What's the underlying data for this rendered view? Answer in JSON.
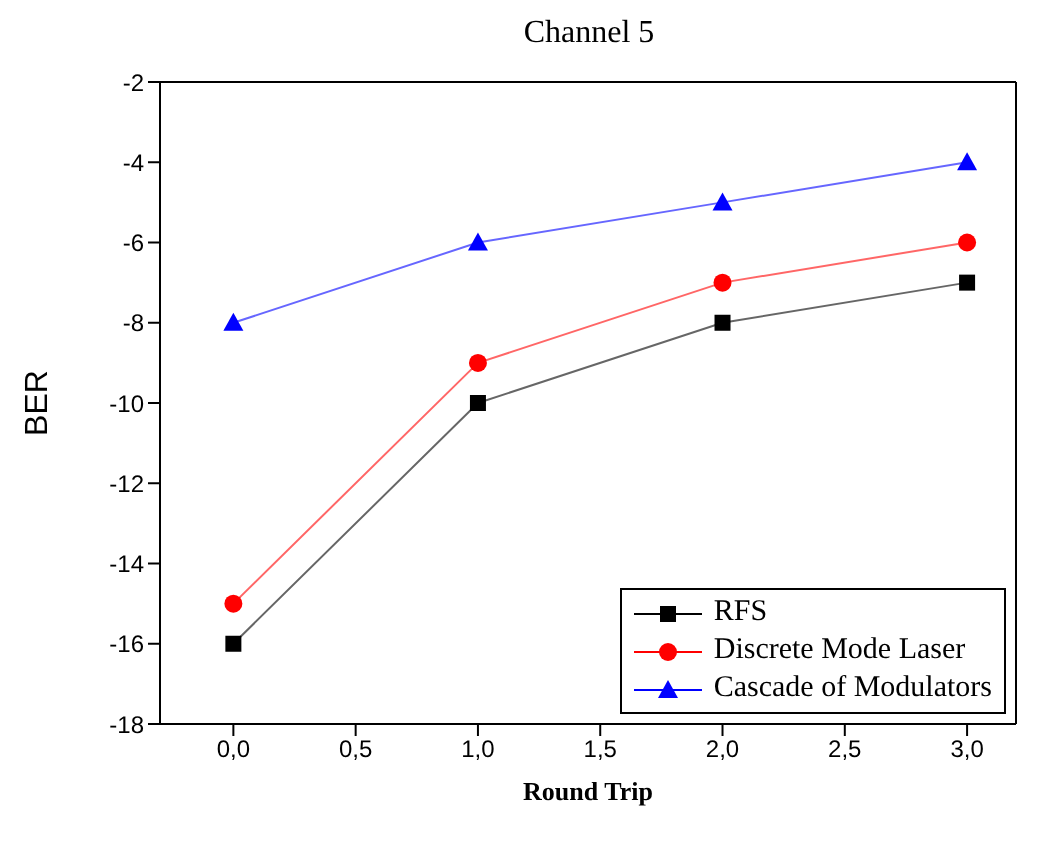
{
  "chart_data": {
    "type": "line",
    "title": "Channel 5",
    "xlabel": "Round Trip",
    "ylabel": "BER",
    "x": [
      0,
      1,
      2,
      3
    ],
    "series": [
      {
        "name": "RFS",
        "color": "#000000",
        "marker": "square",
        "values": [
          -16,
          -10,
          -8,
          -7
        ]
      },
      {
        "name": "Discrete Mode Laser",
        "color": "#ff0000",
        "marker": "circle",
        "values": [
          -15,
          -9,
          -7,
          -6
        ]
      },
      {
        "name": "Cascade of Modulators",
        "color": "#0000ff",
        "marker": "triangle",
        "values": [
          -8,
          -6,
          -5,
          -4
        ]
      }
    ],
    "xlim": [
      -0.3,
      3.2
    ],
    "xticks": [
      {
        "value": 0,
        "label": "0,0"
      },
      {
        "value": 0.5,
        "label": "0,5"
      },
      {
        "value": 1,
        "label": "1,0"
      },
      {
        "value": 1.5,
        "label": "1,5"
      },
      {
        "value": 2,
        "label": "2,0"
      },
      {
        "value": 2.5,
        "label": "2,5"
      },
      {
        "value": 3,
        "label": "3,0"
      }
    ],
    "ylim": [
      -18,
      -2
    ],
    "yticks": [
      -18,
      -16,
      -14,
      -12,
      -10,
      -8,
      -6,
      -4,
      -2
    ],
    "grid": false,
    "legend": "bottom right",
    "line_style": "solid"
  }
}
